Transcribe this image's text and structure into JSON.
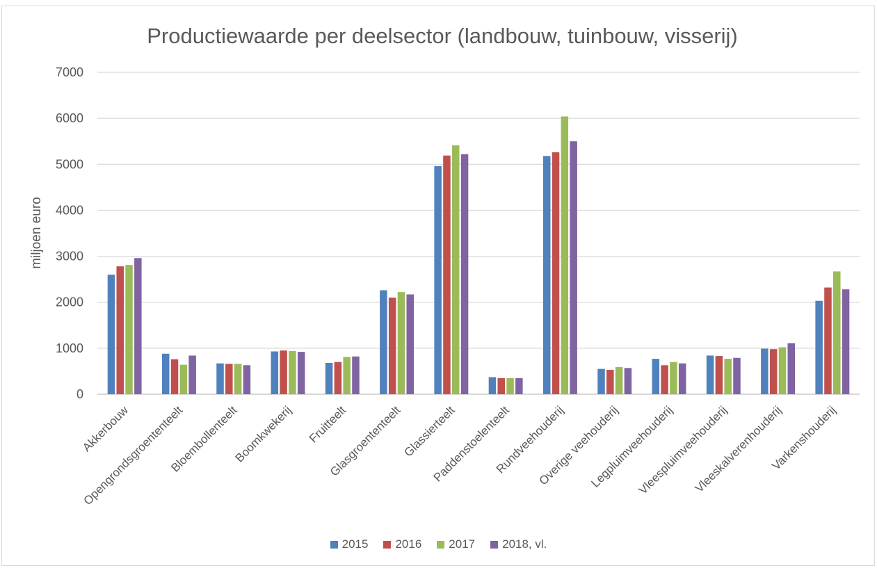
{
  "chart_data": {
    "type": "bar",
    "title": "Productiewaarde per deelsector (landbouw, tuinbouw, visserij)",
    "xlabel": "",
    "ylabel": "miljoen euro",
    "ylim": [
      0,
      7000
    ],
    "yticks": [
      0,
      1000,
      2000,
      3000,
      4000,
      5000,
      6000,
      7000
    ],
    "grid": true,
    "legend_position": "bottom",
    "categories": [
      "Akkerbouw",
      "Opengrondsgroententeelt",
      "Bloembollenteelt",
      "Boomkwekerij",
      "Fruitteelt",
      "Glasgroententeelt",
      "Glassierteelt",
      "Paddenstoelenteelt",
      "Rundveehouderij",
      "Overige veehouderij",
      "Legpluimveehouderij",
      "Vleespluimveehouderij",
      "Vleeskalverenhouderij",
      "Varkenshouderij"
    ],
    "series": [
      {
        "name": "2015",
        "color": "#4f81bd",
        "values": [
          2600,
          880,
          670,
          930,
          680,
          2260,
          4960,
          370,
          5180,
          550,
          770,
          840,
          990,
          2030
        ]
      },
      {
        "name": "2016",
        "color": "#c0504d",
        "values": [
          2780,
          760,
          660,
          950,
          700,
          2100,
          5190,
          350,
          5260,
          530,
          630,
          830,
          980,
          2320
        ]
      },
      {
        "name": "2017",
        "color": "#9bbb59",
        "values": [
          2810,
          640,
          660,
          940,
          810,
          2220,
          5410,
          350,
          6040,
          590,
          700,
          770,
          1020,
          2670
        ]
      },
      {
        "name": "2018, vl.",
        "color": "#8064a2",
        "values": [
          2960,
          840,
          630,
          920,
          820,
          2170,
          5220,
          350,
          5500,
          570,
          670,
          790,
          1110,
          2280
        ]
      }
    ]
  }
}
